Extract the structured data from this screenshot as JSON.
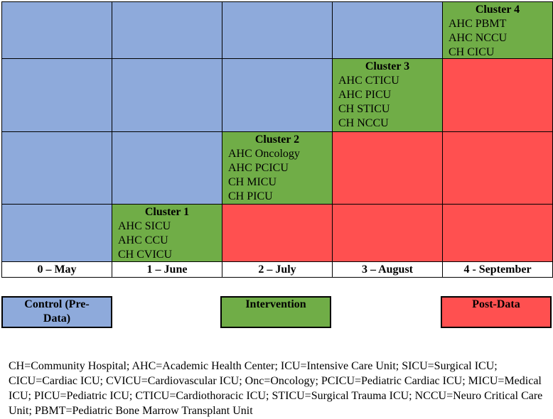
{
  "columns": [
    "0 – May",
    "1 – June",
    "2 – July",
    "3 – August",
    "4 - September"
  ],
  "rows": [
    {
      "cluster": "Cluster 4",
      "units": [
        "AHC PBMT",
        "AHC NCCU",
        "CH CICU"
      ]
    },
    {
      "cluster": "Cluster 3",
      "units": [
        "AHC CTICU",
        "AHC PICU",
        "CH STICU",
        "CH NCCU"
      ]
    },
    {
      "cluster": "Cluster 2",
      "units": [
        "AHC Oncology",
        "AHC PCICU",
        "CH MICU",
        "CH PICU"
      ]
    },
    {
      "cluster": "Cluster 1",
      "units": [
        "AHC SICU",
        "AHC CCU",
        "CH CVICU"
      ]
    }
  ],
  "legend": [
    "Control (Pre-Data)",
    "Intervention",
    "Post-Data"
  ],
  "footnote": "CH=Community Hospital; AHC=Academic Health Center; ICU=Intensive Care Unit; SICU=Surgical ICU; CICU=Cardiac ICU; CVICU=Cardiovascular ICU; Onc=Oncology; PCICU=Pediatric Cardiac ICU; MICU=Medical ICU; PICU=Pediatric ICU; CTICU=Cardiothoracic ICU; STICU=Surgical Trauma ICU; NCCU=Neuro Critical Care Unit; PBMT=Pediatric Bone Marrow Transplant Unit"
}
